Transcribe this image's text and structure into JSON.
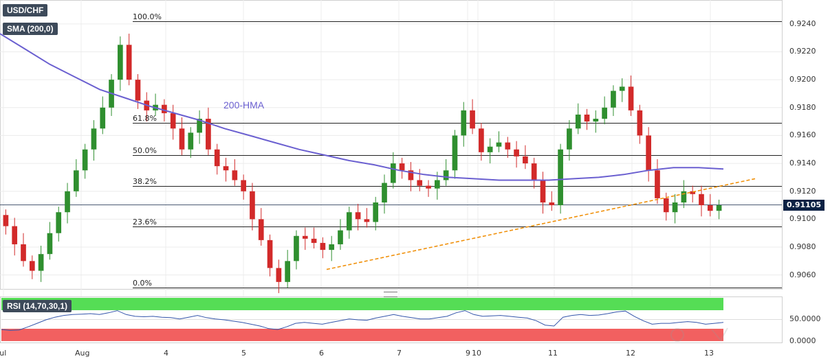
{
  "header": {
    "symbol": "USD/CHF",
    "indicator": "SMA (200,0)",
    "rsi_indicator": "RSI (14,70,30,1)",
    "hma_label": "200-HMA",
    "current_price": "0.91105"
  },
  "colors": {
    "bull": "#2f8f2f",
    "bear": "#d22a2a",
    "hma": "#6a5fd0",
    "trendline": "#f0900a",
    "rsi_line": "#3355aa",
    "overbought_zone": "#55dd55",
    "oversold_zone": "#f26060",
    "price_tag": "#0d2244"
  },
  "chart_data": [
    {
      "type": "candlestick",
      "title": "USD/CHF",
      "ylim": [
        0.905,
        0.925
      ],
      "y_ticks": [
        "0.9060",
        "0.9080",
        "0.9100",
        "0.9120",
        "0.9140",
        "0.9160",
        "0.9180",
        "0.9200",
        "0.9220",
        "0.9240"
      ],
      "x_ticks": [
        "Jul",
        "Aug",
        "4",
        "5",
        "6",
        "7",
        "9",
        "10",
        "11",
        "12",
        "13"
      ],
      "fibonacci": [
        {
          "label": "100.0%",
          "value": 0.9242
        },
        {
          "label": "61.8%",
          "value": 0.9169
        },
        {
          "label": "50.0%",
          "value": 0.9146
        },
        {
          "label": "38.2%",
          "value": 0.9124
        },
        {
          "label": "23.6%",
          "value": 0.9095
        },
        {
          "label": "0.0%",
          "value": 0.9051
        }
      ],
      "current_price": 0.91105,
      "trendline": {
        "label": "",
        "points": [
          [
            0.9064,
            0.9064
          ],
          [
            0.9129,
            0.9129
          ]
        ]
      },
      "hma_200": [
        0.9233,
        0.9222,
        0.9211,
        0.9202,
        0.9193,
        0.9187,
        0.9181,
        0.9176,
        0.9171,
        0.9165,
        0.916,
        0.9155,
        0.915,
        0.9146,
        0.9142,
        0.9139,
        0.9135,
        0.9132,
        0.913,
        0.9129,
        0.9128,
        0.9128,
        0.9128,
        0.9129,
        0.913,
        0.9132,
        0.9135,
        0.9137,
        0.9137,
        0.9136
      ],
      "series_close": [
        0.9095,
        0.9082,
        0.907,
        0.9063,
        0.9075,
        0.909,
        0.9105,
        0.912,
        0.9135,
        0.915,
        0.9165,
        0.918,
        0.92,
        0.9225,
        0.92,
        0.9185,
        0.9178,
        0.9182,
        0.9176,
        0.9165,
        0.915,
        0.9162,
        0.9172,
        0.915,
        0.9138,
        0.9135,
        0.9128,
        0.912,
        0.91,
        0.9085,
        0.9065,
        0.9055,
        0.907,
        0.9088,
        0.9086,
        0.9083,
        0.9078,
        0.9082,
        0.9092,
        0.9105,
        0.91,
        0.9098,
        0.9112,
        0.9126,
        0.914,
        0.9135,
        0.9128,
        0.9124,
        0.9122,
        0.9128,
        0.9135,
        0.916,
        0.9178,
        0.9165,
        0.9148,
        0.9152,
        0.9155,
        0.915,
        0.9145,
        0.914,
        0.9128,
        0.9112,
        0.911,
        0.915,
        0.9165,
        0.9175,
        0.917,
        0.9172,
        0.918,
        0.9192,
        0.9195,
        0.9178,
        0.916,
        0.9135,
        0.9115,
        0.9105,
        0.9112,
        0.912,
        0.9118,
        0.911,
        0.9106,
        0.911
      ]
    },
    {
      "type": "line",
      "title": "RSI (14,70,30,1)",
      "ylim": [
        0,
        100
      ],
      "y_ticks": [
        "0.0000",
        "50.0000"
      ],
      "overbought": 70,
      "oversold": 30,
      "values": [
        28,
        26,
        27,
        34,
        42,
        50,
        56,
        60,
        62,
        63,
        64,
        62,
        66,
        71,
        62,
        58,
        57,
        58,
        56,
        55,
        52,
        56,
        60,
        55,
        52,
        50,
        47,
        44,
        40,
        36,
        30,
        28,
        34,
        42,
        44,
        42,
        40,
        44,
        48,
        52,
        50,
        49,
        54,
        58,
        62,
        58,
        55,
        52,
        52,
        55,
        58,
        66,
        71,
        62,
        58,
        59,
        60,
        58,
        56,
        54,
        48,
        38,
        36,
        56,
        60,
        62,
        60,
        61,
        64,
        68,
        70,
        58,
        48,
        40,
        42,
        42,
        44,
        46,
        44,
        40,
        42,
        44
      ]
    }
  ]
}
